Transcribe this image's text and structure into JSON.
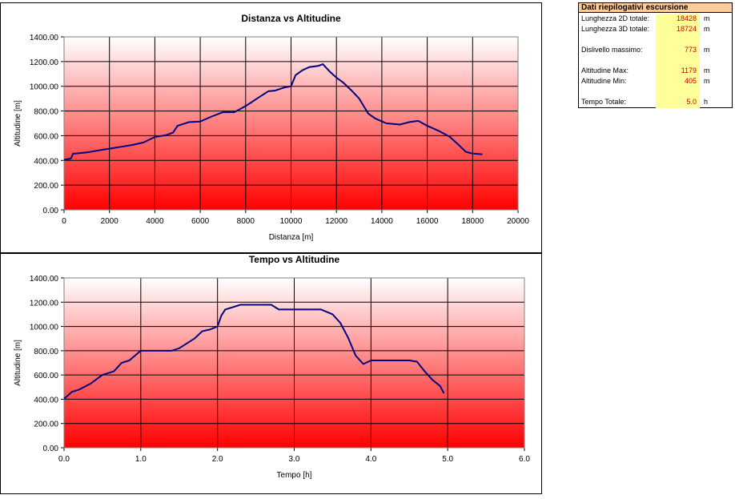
{
  "summary": {
    "title": "Dati riepilogativi escursione",
    "rows": [
      {
        "label": "Lunghezza 2D totale:",
        "value": "18428",
        "unit": "m"
      },
      {
        "label": "Lunghezza 3D totale:",
        "value": "18724",
        "unit": "m"
      },
      {
        "label": "Dislivello massimo:",
        "value": "773",
        "unit": "m"
      },
      {
        "label": "Altitudine Max:",
        "value": "1179",
        "unit": "m"
      },
      {
        "label": "Altitudine Min:",
        "value": "405",
        "unit": "m"
      },
      {
        "label": "Tempo Totale:",
        "value": "5.0",
        "unit": "h"
      }
    ]
  },
  "colors": {
    "line": "#000080",
    "gradient_top": "#ffffff",
    "gradient_bottom": "#ff0000"
  },
  "chart_data": [
    {
      "type": "line",
      "title": "Distanza vs Altitudine",
      "xlabel": "Distanza [m]",
      "ylabel": "Altitudine [m]",
      "xlim": [
        0,
        20000
      ],
      "ylim": [
        0,
        1400
      ],
      "xticks": [
        "0",
        "2000",
        "4000",
        "6000",
        "8000",
        "10000",
        "12000",
        "14000",
        "16000",
        "18000",
        "20000"
      ],
      "yticks": [
        "0.00",
        "200.00",
        "400.00",
        "600.00",
        "800.00",
        "1000.00",
        "1200.00",
        "1400.00"
      ],
      "grid": true,
      "series": [
        {
          "x": [
            0,
            300,
            400,
            500,
            1000,
            1500,
            2000,
            2500,
            3000,
            3500,
            4000,
            4500,
            4800,
            5000,
            5500,
            6000,
            6500,
            7000,
            7500,
            8000,
            8500,
            9000,
            9300,
            9700,
            10000,
            10200,
            10500,
            10800,
            11200,
            11400,
            11700,
            12000,
            12300,
            12700,
            13000,
            13400,
            13700,
            14200,
            14800,
            15200,
            15600,
            16000,
            16500,
            17000,
            17300,
            17700,
            18000,
            18428
          ],
          "y": [
            405,
            415,
            455,
            455,
            465,
            480,
            495,
            510,
            525,
            545,
            590,
            605,
            625,
            680,
            710,
            715,
            755,
            790,
            790,
            840,
            900,
            960,
            965,
            990,
            1000,
            1090,
            1130,
            1155,
            1165,
            1179,
            1120,
            1070,
            1030,
            960,
            900,
            780,
            740,
            700,
            690,
            710,
            720,
            680,
            640,
            590,
            540,
            470,
            455,
            450
          ]
        }
      ]
    },
    {
      "type": "line",
      "title": "Tempo vs Altitudine",
      "xlabel": "Tempo [h]",
      "ylabel": "Altitudine [m]",
      "xlim": [
        0,
        6
      ],
      "ylim": [
        0,
        1400
      ],
      "xticks": [
        "0.0",
        "1.0",
        "2.0",
        "3.0",
        "4.0",
        "5.0",
        "6.0"
      ],
      "yticks": [
        "0.00",
        "200.00",
        "400.00",
        "600.00",
        "800.00",
        "1000.00",
        "1200.00",
        "1400.00"
      ],
      "grid": true,
      "series": [
        {
          "x": [
            0,
            0.05,
            0.1,
            0.2,
            0.35,
            0.5,
            0.65,
            0.75,
            0.85,
            1.0,
            1.2,
            1.4,
            1.5,
            1.7,
            1.8,
            1.9,
            2.0,
            2.05,
            2.1,
            2.3,
            2.5,
            2.7,
            2.8,
            3.0,
            3.2,
            3.35,
            3.5,
            3.6,
            3.7,
            3.8,
            3.9,
            4.0,
            4.5,
            4.6,
            4.7,
            4.8,
            4.9,
            4.95
          ],
          "y": [
            405,
            430,
            460,
            480,
            530,
            600,
            630,
            700,
            720,
            800,
            800,
            800,
            820,
            900,
            960,
            975,
            1000,
            1090,
            1140,
            1179,
            1179,
            1179,
            1140,
            1140,
            1140,
            1140,
            1100,
            1030,
            910,
            760,
            690,
            720,
            720,
            710,
            630,
            560,
            510,
            450
          ]
        }
      ]
    }
  ]
}
